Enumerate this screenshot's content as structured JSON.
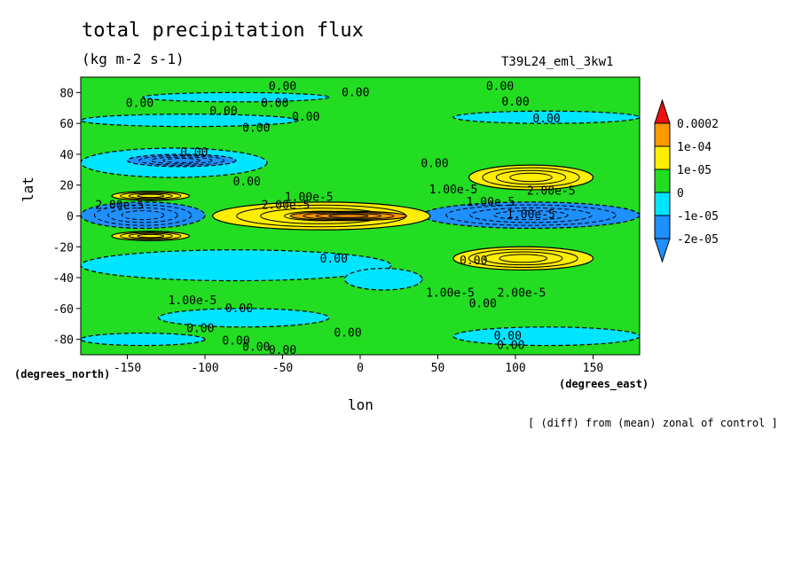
{
  "header": {
    "title": "total precipitation flux",
    "units": "(kg m-2 s-1)",
    "run": "T39L24_eml_3kw1"
  },
  "axes": {
    "ylabel": "lat",
    "xlabel": "lon",
    "yunits": "(degrees_north)",
    "xunits": "(degrees_east)"
  },
  "footer": {
    "note": "[ (diff) from (mean) zonal of control ]"
  },
  "colors": {
    "level_neg2": "#1e90ff",
    "level_neg1": "#00e5ff",
    "level_0": "#22dd22",
    "level_pos1": "#ffee00",
    "level_pos2": "#ff9900",
    "level_pos3": "#ee1111"
  },
  "chart_data": {
    "type": "heatmap",
    "xlim": [
      -180,
      180
    ],
    "ylim": [
      -90,
      90
    ],
    "xticks": [
      {
        "v": -150,
        "label": "-150"
      },
      {
        "v": -100,
        "label": "-100"
      },
      {
        "v": -50,
        "label": "-50"
      },
      {
        "v": 0,
        "label": "0"
      },
      {
        "v": 50,
        "label": "50"
      },
      {
        "v": 100,
        "label": "100"
      },
      {
        "v": 150,
        "label": "150"
      }
    ],
    "yticks": [
      {
        "v": 80,
        "label": "80"
      },
      {
        "v": 60,
        "label": "60"
      },
      {
        "v": 40,
        "label": "40"
      },
      {
        "v": 20,
        "label": "20"
      },
      {
        "v": 0,
        "label": "0"
      },
      {
        "v": -20,
        "label": "-20"
      },
      {
        "v": -40,
        "label": "-40"
      },
      {
        "v": -60,
        "label": "-60"
      },
      {
        "v": -80,
        "label": "-80"
      }
    ],
    "colorbar": [
      {
        "label": "",
        "color": "#1e90ff"
      },
      {
        "label": "-2e-05",
        "color": "#1e90ff"
      },
      {
        "label": "-1e-05",
        "color": "#00e5ff"
      },
      {
        "label": "0",
        "color": "#22dd22"
      },
      {
        "label": "1e-05",
        "color": "#ffee00"
      },
      {
        "label": "1e-04",
        "color": "#ff9900"
      },
      {
        "label": "0.0002",
        "color": "#ee1111"
      }
    ],
    "regions": [
      {
        "level": -1,
        "lon": [
          -180,
          -40
        ],
        "lat": [
          58,
          66
        ]
      },
      {
        "level": -1,
        "lon": [
          60,
          180
        ],
        "lat": [
          60,
          68
        ]
      },
      {
        "level": -1,
        "lon": [
          -140,
          -20
        ],
        "lat": [
          74,
          80
        ]
      },
      {
        "level": -1,
        "lon": [
          -180,
          -60
        ],
        "lat": [
          25,
          44
        ]
      },
      {
        "level": -1,
        "lon": [
          -180,
          20
        ],
        "lat": [
          -42,
          -22
        ]
      },
      {
        "level": -1,
        "lon": [
          -10,
          40
        ],
        "lat": [
          -48,
          -34
        ]
      },
      {
        "level": -1,
        "lon": [
          -130,
          -20
        ],
        "lat": [
          -72,
          -60
        ]
      },
      {
        "level": -1,
        "lon": [
          60,
          180
        ],
        "lat": [
          -84,
          -72
        ]
      },
      {
        "level": -1,
        "lon": [
          -180,
          -100
        ],
        "lat": [
          -84,
          -76
        ]
      },
      {
        "level": -2,
        "lon": [
          -180,
          -100
        ],
        "lat": [
          -8,
          9
        ]
      },
      {
        "level": -2,
        "lon": [
          40,
          180
        ],
        "lat": [
          -8,
          9
        ]
      },
      {
        "level": -2,
        "lon": [
          -150,
          -80
        ],
        "lat": [
          32,
          40
        ]
      },
      {
        "level": 1,
        "lon": [
          70,
          150
        ],
        "lat": [
          17,
          33
        ]
      },
      {
        "level": 1,
        "lon": [
          60,
          150
        ],
        "lat": [
          -35,
          -20
        ]
      },
      {
        "level": 1,
        "lon": [
          -160,
          -110
        ],
        "lat": [
          10,
          16
        ]
      },
      {
        "level": 1,
        "lon": [
          -160,
          -110
        ],
        "lat": [
          -16,
          -10
        ]
      },
      {
        "level": 1,
        "lon": [
          -95,
          45
        ],
        "lat": [
          -9,
          9
        ]
      },
      {
        "level": 2,
        "lon": [
          -45,
          30
        ],
        "lat": [
          -3,
          3
        ]
      }
    ],
    "contour_labels": [
      {
        "text": "0.00",
        "lon": -50,
        "lat": 84
      },
      {
        "text": "0.00",
        "lon": -3,
        "lat": 80
      },
      {
        "text": "0.00",
        "lon": 90,
        "lat": 84
      },
      {
        "text": "0.00",
        "lon": 100,
        "lat": 74
      },
      {
        "text": "0.00",
        "lon": -142,
        "lat": 73
      },
      {
        "text": "0.00",
        "lon": -55,
        "lat": 73
      },
      {
        "text": "0.00",
        "lon": -88,
        "lat": 68
      },
      {
        "text": "0.00",
        "lon": -35,
        "lat": 64
      },
      {
        "text": "0.00",
        "lon": -67,
        "lat": 57
      },
      {
        "text": "0.00",
        "lon": 120,
        "lat": 63
      },
      {
        "text": "0.00",
        "lon": -107,
        "lat": 41
      },
      {
        "text": "0.00",
        "lon": 48,
        "lat": 34
      },
      {
        "text": "1.00e-5",
        "lon": 60,
        "lat": 17
      },
      {
        "text": "2.00e-5",
        "lon": 123,
        "lat": 16
      },
      {
        "text": "0.00",
        "lon": -73,
        "lat": 22
      },
      {
        "text": "1.00e-5",
        "lon": -33,
        "lat": 12
      },
      {
        "text": "2.00e-5",
        "lon": -48,
        "lat": 7
      },
      {
        "text": "2.00e-5",
        "lon": -155,
        "lat": 7
      },
      {
        "text": "1.00e-5",
        "lon": 84,
        "lat": 9
      },
      {
        "text": "1.00e-5",
        "lon": 110,
        "lat": 1
      },
      {
        "text": "0.00",
        "lon": 73,
        "lat": -29
      },
      {
        "text": "0.00",
        "lon": -17,
        "lat": -28
      },
      {
        "text": "1.00e-5",
        "lon": 58,
        "lat": -50
      },
      {
        "text": "2.00e-5",
        "lon": 104,
        "lat": -50
      },
      {
        "text": "0.00",
        "lon": 79,
        "lat": -57
      },
      {
        "text": "1.00e-5",
        "lon": -108,
        "lat": -55
      },
      {
        "text": "0.00",
        "lon": -78,
        "lat": -60
      },
      {
        "text": "0.00",
        "lon": -103,
        "lat": -73
      },
      {
        "text": "0.00",
        "lon": -8,
        "lat": -76
      },
      {
        "text": "0.00",
        "lon": -80,
        "lat": -81
      },
      {
        "text": "0.00",
        "lon": -67,
        "lat": -85
      },
      {
        "text": "0.00",
        "lon": -50,
        "lat": -87
      },
      {
        "text": "0.00",
        "lon": 95,
        "lat": -78
      },
      {
        "text": "0.00",
        "lon": 97,
        "lat": -84
      }
    ]
  }
}
